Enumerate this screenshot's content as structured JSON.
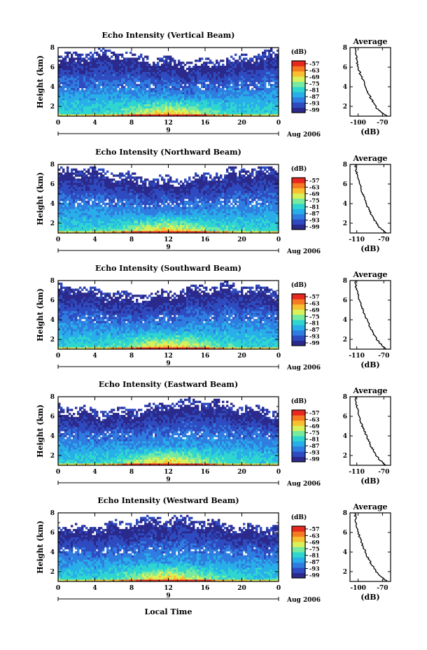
{
  "chart_data": {
    "type": "heatmap",
    "xlabel": "Local Time",
    "date_label": "Aug 2006",
    "day_label": "9",
    "x_ticks": [
      "0",
      "4",
      "8",
      "12",
      "16",
      "20",
      "0"
    ],
    "y_ticks": [
      "2",
      "4",
      "6",
      "8"
    ],
    "ylabel": "Height (km)",
    "xlim_hours": [
      0,
      24
    ],
    "ylim_km": [
      1,
      8
    ],
    "colorbar_unit": "(dB)",
    "colorbar_ticks": [
      "-57",
      "-63",
      "-69",
      "-75",
      "-81",
      "-87",
      "-93",
      "-99"
    ],
    "colorscale": [
      "#2b2a8c",
      "#2f4bc0",
      "#2f7de0",
      "#28aee8",
      "#2fd6d0",
      "#78eaa0",
      "#d8f05a",
      "#f8c030",
      "#f57a22",
      "#e8281e"
    ],
    "profile_title": "Average",
    "profile_xlabel": "(dB)",
    "panels": [
      {
        "title": "Echo Intensity (Vertical Beam)",
        "profile_xticks": [
          "-100",
          "-70"
        ],
        "profile_xlim": [
          -110,
          -60
        ],
        "profile": [
          [
            -64,
            1
          ],
          [
            -75,
            1.6
          ],
          [
            -80,
            2.2
          ],
          [
            -84,
            2.8
          ],
          [
            -88,
            3.4
          ],
          [
            -91,
            4.0
          ],
          [
            -94,
            4.6
          ],
          [
            -97,
            5.2
          ],
          [
            -100,
            6.0
          ],
          [
            -102,
            6.8
          ],
          [
            -103,
            7.4
          ],
          [
            -104,
            8
          ]
        ]
      },
      {
        "title": "Echo Intensity (Northward Beam)",
        "profile_xticks": [
          "-110",
          "-70"
        ],
        "profile_xlim": [
          -120,
          -60
        ],
        "profile": [
          [
            -66,
            1
          ],
          [
            -77,
            1.6
          ],
          [
            -83,
            2.2
          ],
          [
            -88,
            2.8
          ],
          [
            -92,
            3.4
          ],
          [
            -96,
            4.0
          ],
          [
            -99,
            4.6
          ],
          [
            -102,
            5.2
          ],
          [
            -106,
            6.0
          ],
          [
            -109,
            6.8
          ],
          [
            -111,
            7.4
          ],
          [
            -112,
            8
          ]
        ]
      },
      {
        "title": "Echo Intensity (Southward Beam)",
        "profile_xticks": [
          "-110",
          "-70"
        ],
        "profile_xlim": [
          -120,
          -60
        ],
        "profile": [
          [
            -66,
            1
          ],
          [
            -76,
            1.6
          ],
          [
            -82,
            2.2
          ],
          [
            -87,
            2.8
          ],
          [
            -91,
            3.4
          ],
          [
            -95,
            4.0
          ],
          [
            -99,
            4.6
          ],
          [
            -102,
            5.2
          ],
          [
            -106,
            6.0
          ],
          [
            -109,
            6.8
          ],
          [
            -111,
            7.4
          ],
          [
            -112,
            8
          ]
        ]
      },
      {
        "title": "Echo Intensity (Eastward Beam)",
        "profile_xticks": [
          "-110",
          "-70"
        ],
        "profile_xlim": [
          -120,
          -60
        ],
        "profile": [
          [
            -67,
            1
          ],
          [
            -77,
            1.6
          ],
          [
            -83,
            2.2
          ],
          [
            -88,
            2.8
          ],
          [
            -92,
            3.4
          ],
          [
            -96,
            4.0
          ],
          [
            -99,
            4.6
          ],
          [
            -103,
            5.2
          ],
          [
            -106,
            6.0
          ],
          [
            -109,
            6.8
          ],
          [
            -111,
            7.4
          ],
          [
            -112,
            8
          ]
        ]
      },
      {
        "title": "Echo Intensity (Westward Beam)",
        "profile_xticks": [
          "-100",
          "-70"
        ],
        "profile_xlim": [
          -110,
          -60
        ],
        "profile": [
          [
            -64,
            1
          ],
          [
            -74,
            1.6
          ],
          [
            -79,
            2.2
          ],
          [
            -84,
            2.8
          ],
          [
            -88,
            3.4
          ],
          [
            -91,
            4.0
          ],
          [
            -94,
            4.6
          ],
          [
            -97,
            5.2
          ],
          [
            -100,
            6.0
          ],
          [
            -102,
            6.8
          ],
          [
            -103,
            7.4
          ],
          [
            -104,
            8
          ]
        ]
      }
    ]
  }
}
